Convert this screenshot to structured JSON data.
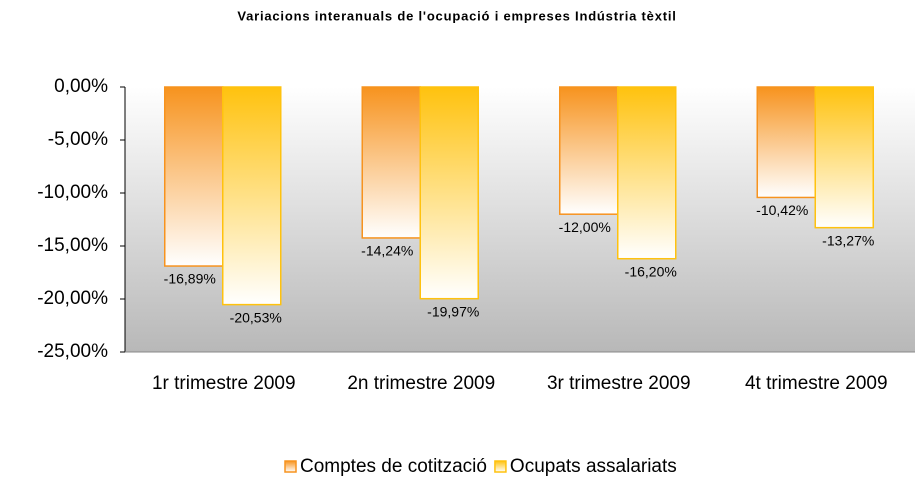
{
  "chart_data": {
    "type": "bar",
    "title": "Variacions interanuals de l'ocupació i empreses Indústria tèxtil",
    "categories": [
      "1r trimestre 2009",
      "2n trimestre 2009",
      "3r trimestre 2009",
      "4t trimestre 2009"
    ],
    "series": [
      {
        "name": "Comptes de cotització",
        "color": "#f7931e",
        "values": [
          -16.89,
          -14.24,
          -12.0,
          -10.42
        ],
        "value_labels": [
          "-16,89%",
          "-14,24%",
          "-12,00%",
          "-10,42%"
        ]
      },
      {
        "name": "Ocupats assalariats",
        "color": "#ffc20e",
        "values": [
          -20.53,
          -19.97,
          -16.2,
          -13.27
        ],
        "value_labels": [
          "-20,53%",
          "-19,97%",
          "-16,20%",
          "-13,27%"
        ]
      }
    ],
    "ylim": [
      -25,
      0
    ],
    "yticks": [
      {
        "value": 0,
        "label": "0,00%"
      },
      {
        "value": -5,
        "label": "-5,00%"
      },
      {
        "value": -10,
        "label": "-10,00%"
      },
      {
        "value": -15,
        "label": "-15,00%"
      },
      {
        "value": -20,
        "label": "-20,00%"
      },
      {
        "value": -25,
        "label": "-25,00%"
      }
    ],
    "legend": "bottom"
  }
}
